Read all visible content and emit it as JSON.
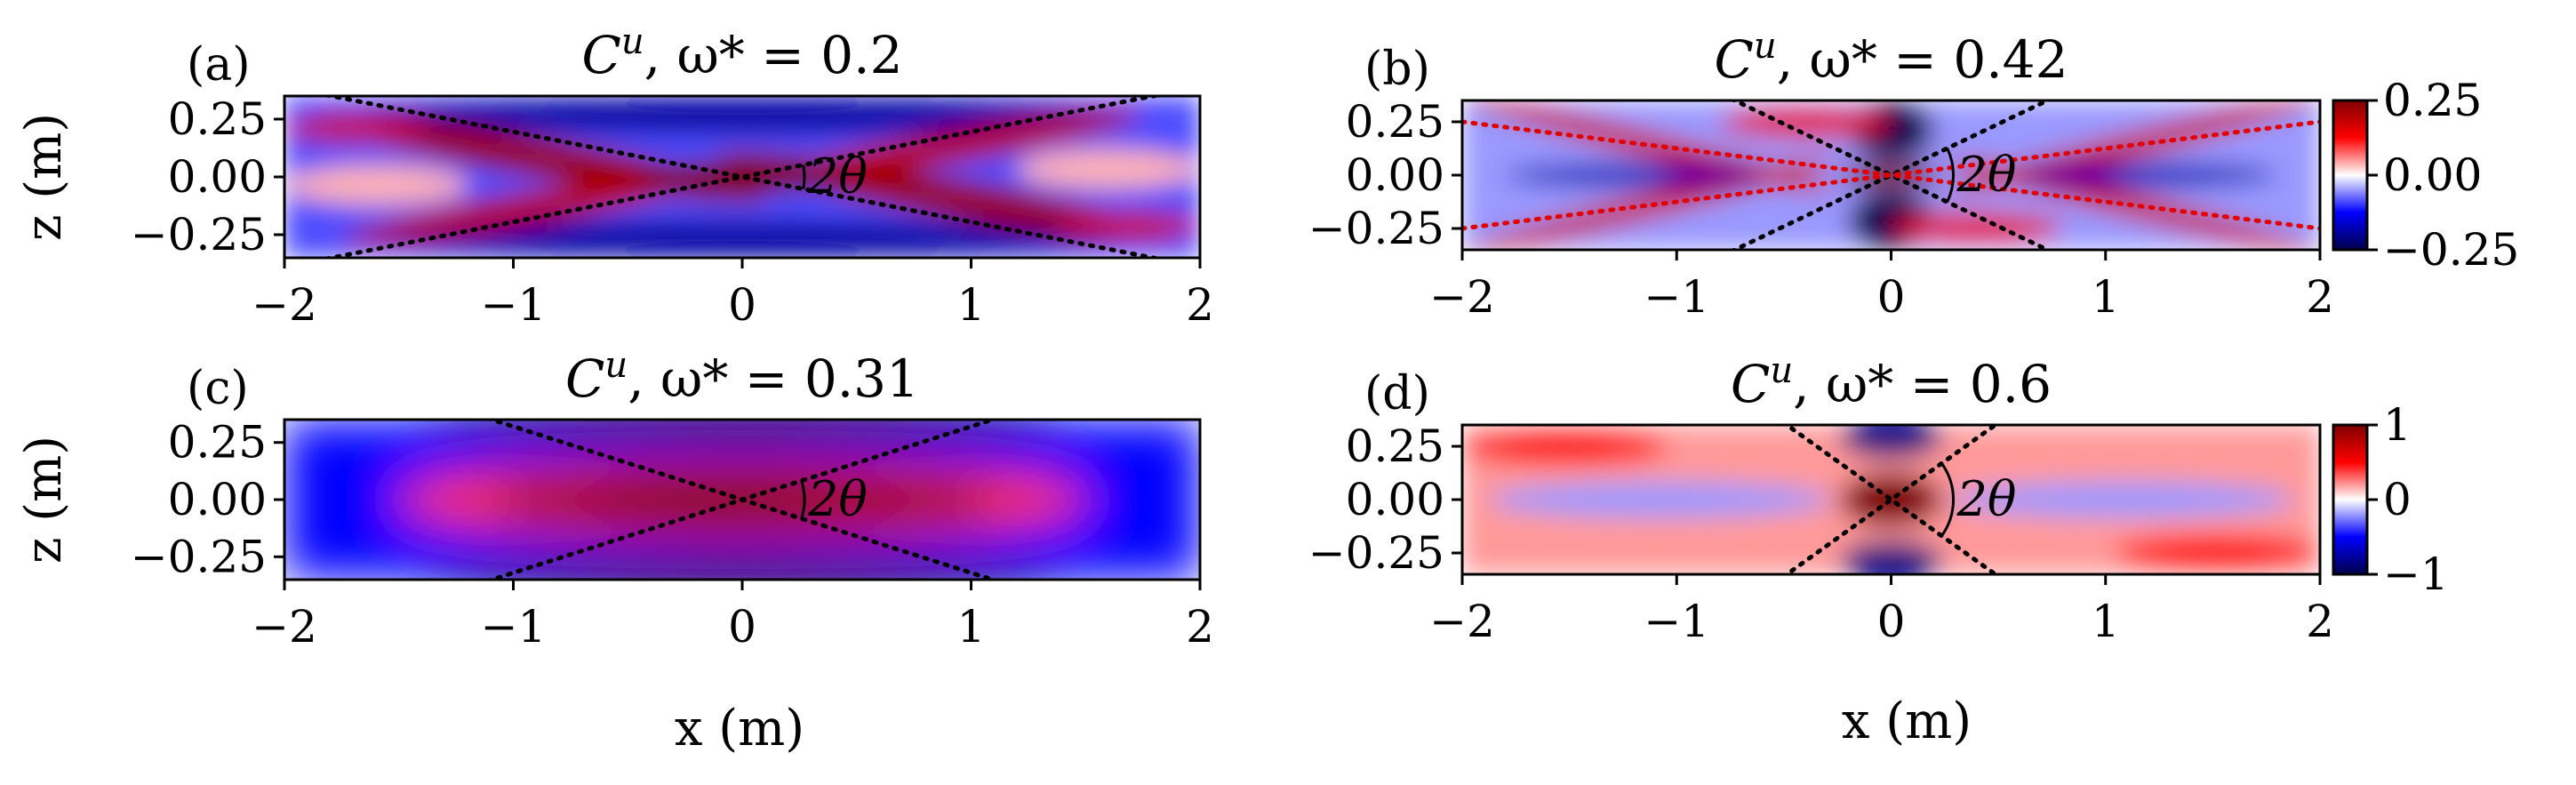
{
  "figure": {
    "xlabel": "x (m)",
    "ylabel": "z (m)",
    "angle_label": "2θ"
  },
  "colorbars": [
    {
      "ticks": [
        0.25,
        0.0,
        -0.25
      ],
      "labels": [
        "0.25",
        "0.00",
        "−0.25"
      ],
      "range": [
        -0.25,
        0.25
      ],
      "cmap": "seismic"
    },
    {
      "ticks": [
        1,
        0,
        -1
      ],
      "labels": [
        "1",
        "0",
        "−1"
      ],
      "range": [
        -1,
        1
      ],
      "cmap": "seismic"
    }
  ],
  "chart_data": [
    {
      "panel": "(a)",
      "type": "heatmap",
      "title_main": "C",
      "title_sup": "u",
      "title_rest": ", ω* = 0.2",
      "xlabel": "",
      "ylabel": "z (m)",
      "xlim": [
        -2,
        2
      ],
      "ylim": [
        -0.35,
        0.35
      ],
      "xticks": [
        -2,
        -1,
        0,
        1,
        2
      ],
      "xticklabels": [
        "−2",
        "−1",
        "0",
        "1",
        "2"
      ],
      "yticks": [
        0.25,
        0.0,
        -0.25
      ],
      "yticklabels": [
        "0.25",
        "0.00",
        "−0.25"
      ],
      "colorbar": 0,
      "beam_lines": [
        {
          "slope": 0.195,
          "color": "#000000"
        }
      ],
      "angle_label": "2θ"
    },
    {
      "panel": "(b)",
      "type": "heatmap",
      "title_main": "C",
      "title_sup": "u",
      "title_rest": ", ω* = 0.42",
      "xlabel": "",
      "ylabel": "",
      "xlim": [
        -2,
        2
      ],
      "ylim": [
        -0.35,
        0.35
      ],
      "xticks": [
        -2,
        -1,
        0,
        1,
        2
      ],
      "xticklabels": [
        "−2",
        "−1",
        "0",
        "1",
        "2"
      ],
      "yticks": [
        0.25,
        0.0,
        -0.25
      ],
      "yticklabels": [
        "0.25",
        "0.00",
        "−0.25"
      ],
      "colorbar": 0,
      "beam_lines": [
        {
          "slope": 0.48,
          "color": "#000000"
        },
        {
          "slope": 0.125,
          "color": "#e00000"
        }
      ],
      "angle_label": "2θ"
    },
    {
      "panel": "(c)",
      "type": "heatmap",
      "title_main": "C",
      "title_sup": "u",
      "title_rest": ", ω* = 0.31",
      "xlabel": "x (m)",
      "ylabel": "z (m)",
      "xlim": [
        -2,
        2
      ],
      "ylim": [
        -0.35,
        0.35
      ],
      "xticks": [
        -2,
        -1,
        0,
        1,
        2
      ],
      "xticklabels": [
        "−2",
        "−1",
        "0",
        "1",
        "2"
      ],
      "yticks": [
        0.25,
        0.0,
        -0.25
      ],
      "yticklabels": [
        "0.25",
        "0.00",
        "−0.25"
      ],
      "colorbar": null,
      "beam_lines": [
        {
          "slope": 0.32,
          "color": "#000000"
        }
      ],
      "angle_label": "2θ"
    },
    {
      "panel": "(d)",
      "type": "heatmap",
      "title_main": "C",
      "title_sup": "u",
      "title_rest": ", ω* = 0.6",
      "xlabel": "x (m)",
      "ylabel": "",
      "xlim": [
        -2,
        2
      ],
      "ylim": [
        -0.35,
        0.35
      ],
      "xticks": [
        -2,
        -1,
        0,
        1,
        2
      ],
      "xticklabels": [
        "−2",
        "−1",
        "0",
        "1",
        "2"
      ],
      "yticks": [
        0.25,
        0.0,
        -0.25
      ],
      "yticklabels": [
        "0.25",
        "0.00",
        "−0.25"
      ],
      "colorbar": 1,
      "beam_lines": [
        {
          "slope": 0.72,
          "color": "#000000"
        }
      ],
      "angle_label": "2θ"
    }
  ]
}
